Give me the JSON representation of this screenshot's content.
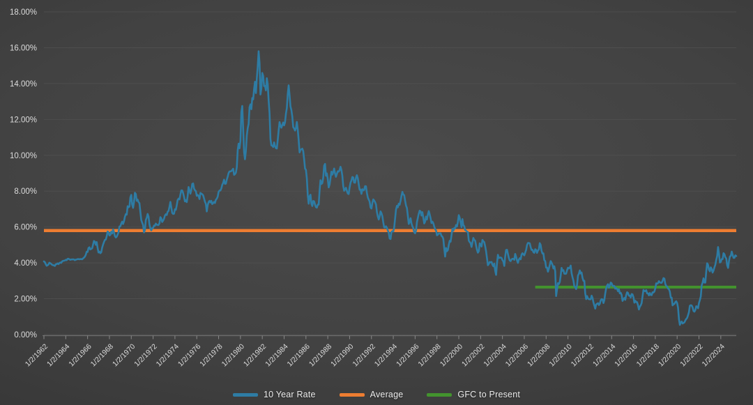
{
  "chart_data": {
    "type": "line",
    "title": "",
    "xlabel": "",
    "ylabel": "",
    "ylim": [
      0,
      18
    ],
    "y_tick_labels": [
      "18.00%",
      "16.00%",
      "14.00%",
      "12.00%",
      "10.00%",
      "8.00%",
      "6.00%",
      "4.00%",
      "2.00%",
      "0.00%"
    ],
    "x_tick_labels": [
      "1/2/1962",
      "1/2/1964",
      "1/2/1966",
      "1/2/1968",
      "1/2/1970",
      "1/2/1972",
      "1/2/1974",
      "1/2/1976",
      "1/2/1978",
      "1/2/1980",
      "1/2/1982",
      "1/2/1984",
      "1/2/1986",
      "1/2/1988",
      "1/2/1990",
      "1/2/1992",
      "1/2/1994",
      "1/2/1996",
      "1/2/1998",
      "1/2/2000",
      "1/2/2002",
      "1/2/2004",
      "1/2/2006",
      "1/2/2008",
      "1/2/2010",
      "1/2/2012",
      "1/2/2014",
      "1/2/2016",
      "1/2/2018",
      "1/2/2020",
      "1/2/2022",
      "1/2/2024"
    ],
    "x_tick_month_step": 24,
    "grid": true,
    "legend_position": "bottom",
    "series": [
      {
        "name": "10 Year Rate",
        "kind": "line",
        "color": "#2E7CA4",
        "start": "1962-01",
        "frequency": "monthly",
        "unit": "percent",
        "values_by_year": {
          "1962": [
            4.08,
            4.04,
            3.93,
            3.84,
            3.87,
            3.91,
            4.01,
            3.98,
            3.94,
            3.89,
            3.87,
            3.86
          ],
          "1963": [
            3.83,
            3.92,
            3.93,
            3.97,
            3.93,
            3.99,
            4.02,
            4.0,
            4.08,
            4.11,
            4.12,
            4.13
          ],
          "1964": [
            4.17,
            4.15,
            4.22,
            4.23,
            4.2,
            4.17,
            4.19,
            4.19,
            4.2,
            4.19,
            4.15,
            4.18
          ],
          "1965": [
            4.19,
            4.21,
            4.21,
            4.2,
            4.21,
            4.21,
            4.2,
            4.25,
            4.29,
            4.35,
            4.45,
            4.62
          ],
          "1966": [
            4.61,
            4.83,
            4.87,
            4.75,
            4.78,
            4.81,
            5.02,
            5.22,
            5.18,
            5.01,
            5.16,
            4.84
          ],
          "1967": [
            4.58,
            4.63,
            4.54,
            4.59,
            4.85,
            5.02,
            5.16,
            5.28,
            5.3,
            5.48,
            5.75,
            5.7
          ],
          "1968": [
            5.53,
            5.56,
            5.74,
            5.64,
            5.87,
            5.72,
            5.5,
            5.42,
            5.46,
            5.58,
            5.7,
            6.03
          ],
          "1969": [
            6.04,
            6.19,
            6.3,
            6.17,
            6.32,
            6.57,
            6.72,
            6.69,
            7.16,
            7.1,
            7.14,
            7.65
          ],
          "1970": [
            7.79,
            7.24,
            7.07,
            7.39,
            7.91,
            7.84,
            7.46,
            7.53,
            7.39,
            7.33,
            6.84,
            6.39
          ],
          "1971": [
            6.24,
            6.11,
            5.7,
            5.83,
            6.39,
            6.52,
            6.73,
            6.58,
            6.14,
            5.93,
            5.81,
            5.93
          ],
          "1972": [
            5.95,
            6.08,
            6.07,
            6.19,
            6.13,
            6.11,
            6.11,
            6.21,
            6.55,
            6.48,
            6.28,
            6.36
          ],
          "1973": [
            6.46,
            6.64,
            6.71,
            6.67,
            6.85,
            6.9,
            7.13,
            7.4,
            7.09,
            6.79,
            6.73,
            6.74
          ],
          "1974": [
            6.99,
            6.96,
            7.21,
            7.51,
            7.58,
            7.54,
            7.81,
            8.04,
            8.04,
            7.9,
            7.68,
            7.43
          ],
          "1975": [
            7.5,
            7.39,
            7.73,
            8.23,
            8.06,
            7.86,
            8.06,
            8.4,
            8.43,
            8.14,
            8.05,
            8.0
          ],
          "1976": [
            7.74,
            7.79,
            7.73,
            7.56,
            7.9,
            7.86,
            7.83,
            7.77,
            7.59,
            7.41,
            7.29,
            6.87
          ],
          "1977": [
            7.21,
            7.39,
            7.46,
            7.37,
            7.46,
            7.28,
            7.33,
            7.4,
            7.34,
            7.52,
            7.58,
            7.69
          ],
          "1978": [
            7.96,
            8.03,
            8.04,
            8.15,
            8.35,
            8.46,
            8.64,
            8.41,
            8.42,
            8.64,
            8.81,
            9.01
          ],
          "1979": [
            9.1,
            9.1,
            9.12,
            9.18,
            9.25,
            8.91,
            8.95,
            9.03,
            9.33,
            10.3,
            10.65,
            10.39
          ],
          "1980": [
            10.8,
            12.41,
            12.75,
            11.47,
            10.18,
            9.78,
            10.25,
            11.1,
            11.51,
            11.75,
            12.68,
            12.84
          ],
          "1981": [
            12.57,
            13.19,
            13.12,
            13.68,
            14.1,
            13.47,
            14.28,
            14.94,
            15.8,
            15.15,
            13.39,
            13.72
          ],
          "1982": [
            14.59,
            14.43,
            13.86,
            13.87,
            13.62,
            14.3,
            13.95,
            13.06,
            12.34,
            10.91,
            10.55,
            10.54
          ],
          "1983": [
            10.46,
            10.72,
            10.51,
            10.4,
            10.38,
            10.85,
            11.38,
            11.85,
            11.65,
            11.54,
            11.69,
            11.83
          ],
          "1984": [
            11.67,
            11.84,
            12.32,
            12.63,
            13.41,
            13.9,
            13.36,
            12.72,
            12.52,
            12.16,
            11.57,
            11.5
          ],
          "1985": [
            11.38,
            11.51,
            11.86,
            11.43,
            10.85,
            10.16,
            10.31,
            10.33,
            10.37,
            10.24,
            9.78,
            9.26
          ],
          "1986": [
            9.19,
            8.7,
            7.78,
            7.3,
            7.71,
            7.8,
            7.3,
            7.17,
            7.45,
            7.43,
            7.25,
            7.11
          ],
          "1987": [
            7.08,
            7.25,
            7.25,
            8.02,
            8.61,
            8.4,
            8.45,
            8.76,
            9.42,
            9.52,
            8.86,
            8.99
          ],
          "1988": [
            8.67,
            8.21,
            8.37,
            8.72,
            9.09,
            8.92,
            9.06,
            9.26,
            8.98,
            8.8,
            8.96,
            9.11
          ],
          "1989": [
            9.09,
            9.17,
            9.36,
            9.18,
            8.86,
            8.28,
            8.02,
            8.11,
            8.19,
            8.01,
            7.87,
            7.84
          ],
          "1990": [
            8.21,
            8.47,
            8.59,
            8.79,
            8.76,
            8.48,
            8.47,
            8.75,
            8.89,
            8.72,
            8.39,
            8.08
          ],
          "1991": [
            8.09,
            7.85,
            8.11,
            8.04,
            8.07,
            8.28,
            8.27,
            7.9,
            7.65,
            7.53,
            7.42,
            7.09
          ],
          "1992": [
            7.03,
            7.34,
            7.54,
            7.48,
            7.39,
            7.26,
            6.84,
            6.59,
            6.42,
            6.59,
            6.87,
            6.77
          ],
          "1993": [
            6.6,
            6.26,
            5.98,
            5.97,
            6.04,
            5.96,
            5.81,
            5.68,
            5.36,
            5.33,
            5.72,
            5.77
          ],
          "1994": [
            5.75,
            5.97,
            6.48,
            6.97,
            7.18,
            7.1,
            7.3,
            7.24,
            7.46,
            7.74,
            7.96,
            7.81
          ],
          "1995": [
            7.78,
            7.47,
            7.2,
            7.06,
            6.63,
            6.17,
            6.28,
            6.49,
            6.2,
            6.04,
            5.93,
            5.71
          ],
          "1996": [
            5.65,
            5.81,
            6.27,
            6.51,
            6.74,
            6.91,
            6.87,
            6.64,
            6.83,
            6.53,
            6.2,
            6.3
          ],
          "1997": [
            6.58,
            6.42,
            6.69,
            6.89,
            6.71,
            6.49,
            6.22,
            6.3,
            6.21,
            6.03,
            5.88,
            5.81
          ],
          "1998": [
            5.54,
            5.57,
            5.65,
            5.64,
            5.65,
            5.5,
            5.46,
            5.34,
            4.81,
            4.35,
            4.83,
            4.65
          ],
          "1999": [
            4.72,
            5.0,
            5.23,
            5.18,
            5.54,
            5.9,
            5.79,
            5.94,
            5.92,
            6.11,
            6.03,
            6.28
          ],
          "2000": [
            6.66,
            6.52,
            6.26,
            5.99,
            6.44,
            6.1,
            6.05,
            5.83,
            5.8,
            5.74,
            5.72,
            5.24
          ],
          "2001": [
            5.16,
            5.1,
            4.89,
            5.14,
            5.39,
            5.28,
            5.24,
            4.97,
            4.73,
            4.57,
            4.65,
            5.09
          ],
          "2002": [
            5.04,
            4.91,
            5.28,
            5.21,
            5.16,
            4.93,
            4.65,
            4.26,
            3.87,
            3.94,
            4.05,
            4.03
          ],
          "2003": [
            4.05,
            3.9,
            3.81,
            3.96,
            3.57,
            3.33,
            3.98,
            4.45,
            4.27,
            4.29,
            4.3,
            4.27
          ],
          "2004": [
            4.15,
            4.08,
            3.83,
            4.35,
            4.72,
            4.73,
            4.5,
            4.28,
            4.13,
            4.1,
            4.19,
            4.23
          ],
          "2005": [
            4.22,
            4.17,
            4.5,
            4.34,
            4.14,
            4.0,
            4.18,
            4.26,
            4.2,
            4.46,
            4.54,
            4.47
          ],
          "2006": [
            4.42,
            4.57,
            4.72,
            4.99,
            5.11,
            5.11,
            5.09,
            4.88,
            4.72,
            4.73,
            4.6,
            4.56
          ],
          "2007": [
            4.76,
            4.72,
            4.56,
            4.69,
            4.75,
            5.1,
            5.0,
            4.67,
            4.52,
            4.53,
            4.15,
            4.1
          ],
          "2008": [
            3.74,
            3.74,
            3.51,
            3.68,
            3.88,
            4.1,
            4.01,
            3.89,
            3.69,
            3.81,
            3.53,
            2.15
          ],
          "2009": [
            2.52,
            2.87,
            2.82,
            2.93,
            3.29,
            3.72,
            3.56,
            3.59,
            3.4,
            3.39,
            3.4,
            3.59
          ],
          "2010": [
            3.73,
            3.69,
            3.73,
            3.85,
            3.42,
            3.2,
            3.01,
            2.7,
            2.65,
            2.54,
            2.76,
            3.29
          ],
          "2011": [
            3.39,
            3.58,
            3.41,
            3.46,
            3.17,
            3.0,
            3.0,
            2.3,
            1.98,
            2.15,
            2.01,
            1.98
          ],
          "2012": [
            1.97,
            1.97,
            2.17,
            2.05,
            1.8,
            1.62,
            1.45,
            1.68,
            1.72,
            1.75,
            1.65,
            1.72
          ],
          "2013": [
            1.91,
            1.98,
            1.96,
            1.76,
            1.93,
            2.3,
            2.58,
            2.74,
            2.81,
            2.62,
            2.72,
            2.9
          ],
          "2014": [
            2.86,
            2.71,
            2.72,
            2.71,
            2.56,
            2.6,
            2.54,
            2.42,
            2.53,
            2.3,
            2.33,
            2.21
          ],
          "2015": [
            1.88,
            1.98,
            2.04,
            1.94,
            2.2,
            2.36,
            2.32,
            2.17,
            2.17,
            2.07,
            2.26,
            2.24
          ],
          "2016": [
            2.09,
            1.78,
            1.89,
            1.81,
            1.81,
            1.64,
            1.4,
            1.56,
            1.63,
            1.76,
            2.14,
            2.49
          ],
          "2017": [
            2.43,
            2.42,
            2.48,
            2.3,
            2.3,
            2.19,
            2.32,
            2.21,
            2.2,
            2.36,
            2.35,
            2.4
          ],
          "2018": [
            2.58,
            2.86,
            2.84,
            2.87,
            2.98,
            2.91,
            2.89,
            2.89,
            3.0,
            3.15,
            3.12,
            2.83
          ],
          "2019": [
            2.71,
            2.68,
            2.57,
            2.53,
            2.4,
            2.07,
            2.06,
            1.63,
            1.7,
            1.71,
            1.81,
            1.86
          ],
          "2020": [
            1.76,
            1.5,
            0.87,
            0.54,
            0.67,
            0.73,
            0.62,
            0.65,
            0.68,
            0.79,
            0.87,
            0.93
          ],
          "2021": [
            1.08,
            1.26,
            1.61,
            1.64,
            1.62,
            1.52,
            1.32,
            1.28,
            1.37,
            1.58,
            1.56,
            1.47
          ],
          "2022": [
            1.76,
            1.93,
            2.13,
            2.75,
            2.9,
            3.14,
            2.9,
            2.9,
            3.52,
            3.98,
            3.89,
            3.62
          ],
          "2023": [
            3.53,
            3.75,
            3.66,
            3.46,
            3.57,
            3.75,
            3.9,
            4.17,
            4.38,
            4.88,
            4.5,
            4.02
          ],
          "2024": [
            4.06,
            4.21,
            4.21,
            4.54,
            4.48,
            4.31,
            4.25,
            3.87,
            3.72,
            4.1,
            4.36,
            4.39
          ],
          "2025": [
            4.63,
            4.45,
            4.28,
            4.28,
            4.42,
            4.38
          ]
        }
      },
      {
        "name": "Average",
        "kind": "hline",
        "color": "#ED7D31",
        "value": 5.8,
        "start": "1962-01",
        "end": "end"
      },
      {
        "name": "GFC to Present",
        "kind": "hline",
        "color": "#43932E",
        "value": 2.65,
        "start": "2007-01",
        "end": "end"
      }
    ]
  },
  "colors": {
    "background_center": "#4b4b4b",
    "background_edge": "#282828",
    "gridline": "#525252",
    "axis_line": "#6e6e6e",
    "tick_mark": "#8a8a8a",
    "axis_label": "#dcdcdc"
  },
  "legend": {
    "items": [
      {
        "label": "10 Year Rate",
        "color": "#2E7CA4"
      },
      {
        "label": "Average",
        "color": "#ED7D31"
      },
      {
        "label": "GFC to Present",
        "color": "#43932E"
      }
    ]
  }
}
